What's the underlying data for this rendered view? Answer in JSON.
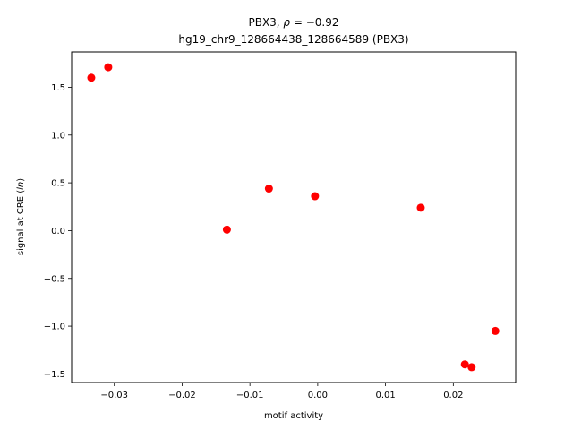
{
  "chart_data": {
    "type": "scatter",
    "title_prefix": "PBX3, ",
    "title_rho_symbol": "ρ",
    "title_rho_value": " = −0.92",
    "subtitle": "hg19_chr9_128664438_128664589 (PBX3)",
    "xlabel": "motif activity",
    "ylabel_prefix": "signal at CRE (",
    "ylabel_italic": "ln",
    "ylabel_suffix": ")",
    "xlim": [
      -0.0363,
      0.0292
    ],
    "ylim": [
      -1.59,
      1.87
    ],
    "x_ticks": [
      -0.03,
      -0.02,
      -0.01,
      0.0,
      0.01,
      0.02
    ],
    "x_tick_labels": [
      "−0.03",
      "−0.02",
      "−0.01",
      "0.00",
      "0.01",
      "0.02"
    ],
    "y_ticks": [
      -1.5,
      -1.0,
      -0.5,
      0.0,
      0.5,
      1.0,
      1.5
    ],
    "y_tick_labels": [
      "−1.5",
      "−1.0",
      "−0.5",
      "0.0",
      "0.5",
      "1.0",
      "1.5"
    ],
    "marker_color": "#ff0000",
    "grid": false,
    "points": [
      {
        "x": -0.0334,
        "y": 1.6
      },
      {
        "x": -0.0309,
        "y": 1.71
      },
      {
        "x": -0.0134,
        "y": 0.01
      },
      {
        "x": -0.0072,
        "y": 0.44
      },
      {
        "x": -0.0004,
        "y": 0.36
      },
      {
        "x": 0.0152,
        "y": 0.24
      },
      {
        "x": 0.0217,
        "y": -1.4
      },
      {
        "x": 0.0227,
        "y": -1.43
      },
      {
        "x": 0.0262,
        "y": -1.05
      }
    ]
  }
}
